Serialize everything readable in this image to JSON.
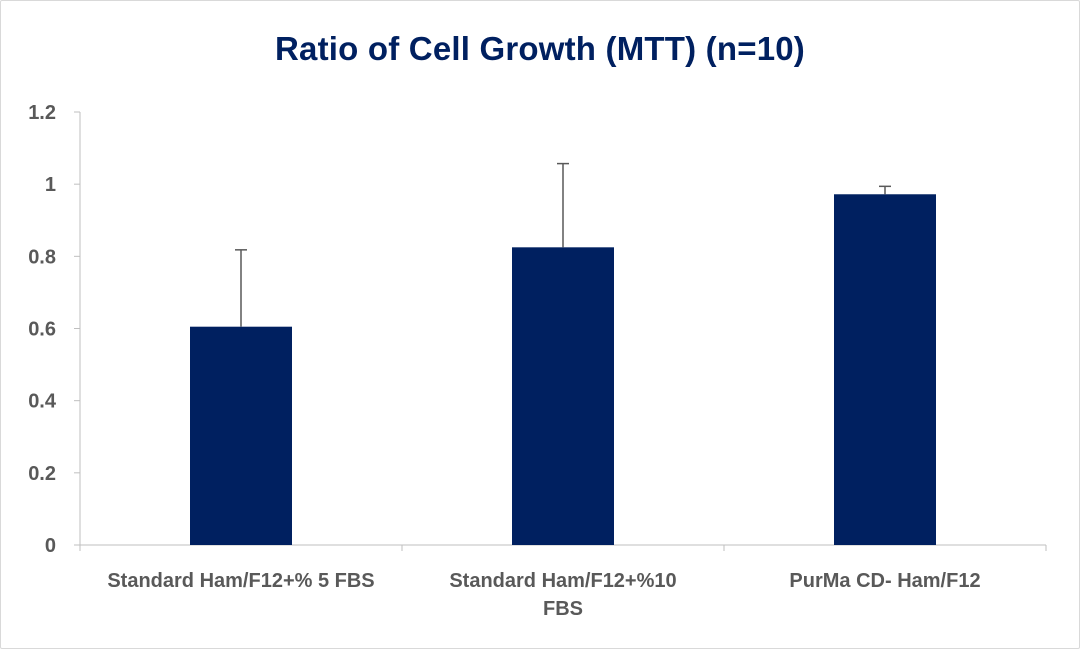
{
  "chart_data": {
    "type": "bar",
    "title": "Ratio of Cell Growth (MTT) (n=10)",
    "xlabel": "",
    "ylabel": "",
    "categories": [
      [
        "Standard Ham/F12+% 5 FBS"
      ],
      [
        "Standard  Ham/F12+%10",
        "FBS"
      ],
      [
        "PurMa CD- Ham/F12"
      ]
    ],
    "values": [
      0.605,
      0.825,
      0.972
    ],
    "error_plus": [
      0.213,
      0.232,
      0.022
    ],
    "ylim": [
      0,
      1.2
    ],
    "yticks": [
      "0",
      "0.2",
      "0.4",
      "0.6",
      "0.8",
      "1",
      "1.2"
    ],
    "ytick_values": [
      0,
      0.2,
      0.4,
      0.6,
      0.8,
      1,
      1.2
    ],
    "grid": false,
    "legend": "none",
    "colors": {
      "bar": "#002060",
      "title": "#002060",
      "axis": "#595959",
      "error_bar": "#595959"
    }
  }
}
